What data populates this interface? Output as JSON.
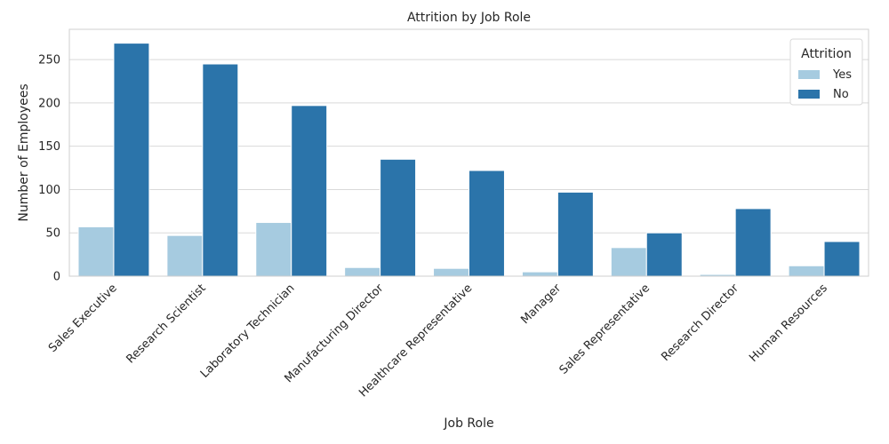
{
  "chart_data": {
    "type": "bar",
    "title": "Attrition by Job Role",
    "xlabel": "Job Role",
    "ylabel": "Number of Employees",
    "ylim": [
      0,
      285
    ],
    "yticks": [
      0,
      50,
      100,
      150,
      200,
      250
    ],
    "grid": true,
    "legend": {
      "title": "Attrition",
      "placement": "top-right"
    },
    "categories": [
      "Sales Executive",
      "Research Scientist",
      "Laboratory Technician",
      "Manufacturing Director",
      "Healthcare Representative",
      "Manager",
      "Sales Representative",
      "Research Director",
      "Human Resources"
    ],
    "series": [
      {
        "name": "Yes",
        "color": "#a6cbe0",
        "values": [
          57,
          47,
          62,
          10,
          9,
          5,
          33,
          2,
          12
        ]
      },
      {
        "name": "No",
        "color": "#2b74aa",
        "values": [
          269,
          245,
          197,
          135,
          122,
          97,
          50,
          78,
          40
        ]
      }
    ]
  }
}
